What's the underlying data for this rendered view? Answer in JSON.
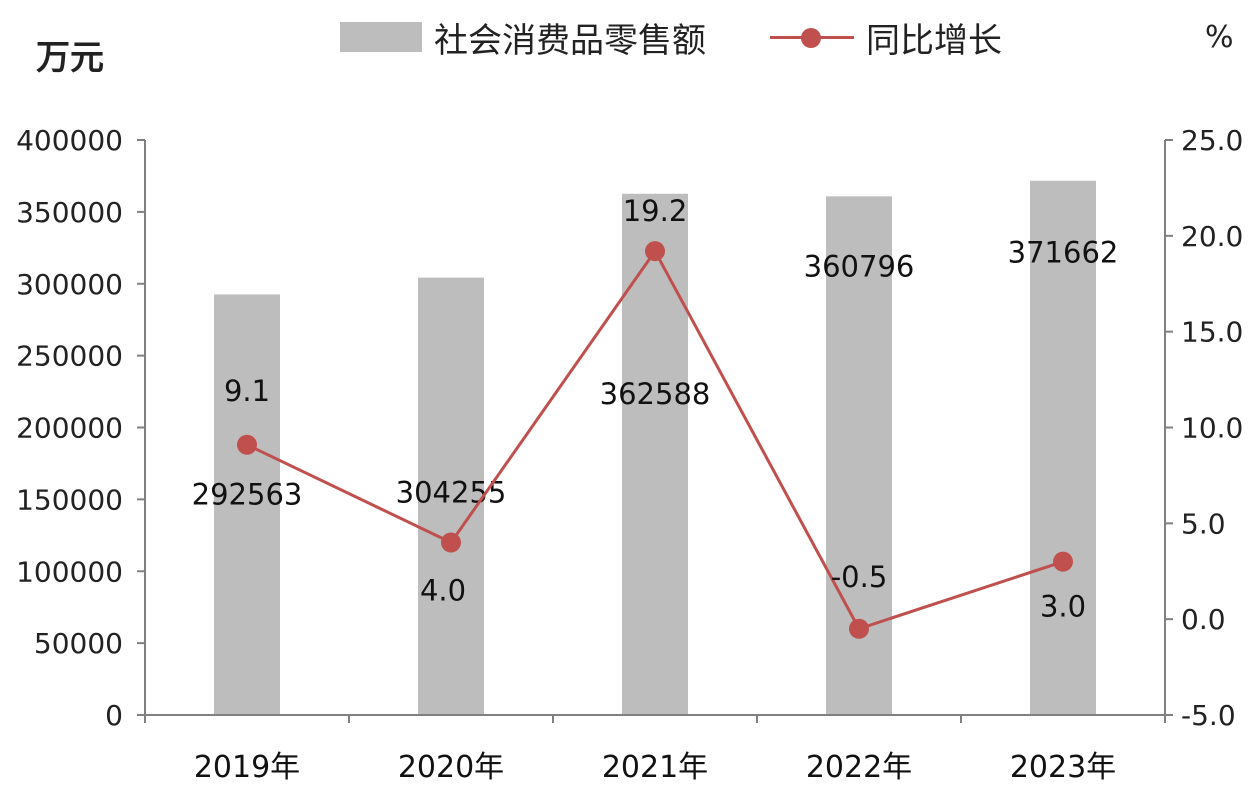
{
  "units": {
    "left": "万元",
    "right": "%"
  },
  "legend": {
    "bar_label": "社会消费品零售额",
    "line_label": "同比增长"
  },
  "chart_data": {
    "type": "bar",
    "categories": [
      "2019年",
      "2020年",
      "2021年",
      "2022年",
      "2023年"
    ],
    "series": [
      {
        "name": "社会消费品零售额",
        "type": "bar",
        "axis": "left",
        "values": [
          292563,
          304255,
          362588,
          360796,
          371662
        ],
        "labels": [
          "292563",
          "304255",
          "362588",
          "360796",
          "371662"
        ]
      },
      {
        "name": "同比增长",
        "type": "line",
        "axis": "right",
        "values": [
          9.1,
          4.0,
          19.2,
          -0.5,
          3.0
        ],
        "labels": [
          "9.1",
          "4.0",
          "19.2",
          "-0.5",
          "3.0"
        ]
      }
    ],
    "y_left": {
      "ylim": [
        0,
        400000
      ],
      "ticks": [
        "0",
        "50000",
        "100000",
        "150000",
        "200000",
        "250000",
        "300000",
        "350000",
        "400000"
      ]
    },
    "y_right": {
      "ylim": [
        -5,
        25
      ],
      "ticks": [
        "-5.0",
        "0.0",
        "5.0",
        "10.0",
        "15.0",
        "20.0",
        "25.0"
      ]
    },
    "colors": {
      "bar": "#bdbdbd",
      "line": "#c0504d",
      "axis": "#808080"
    },
    "grid": false,
    "legend_position": "top"
  }
}
